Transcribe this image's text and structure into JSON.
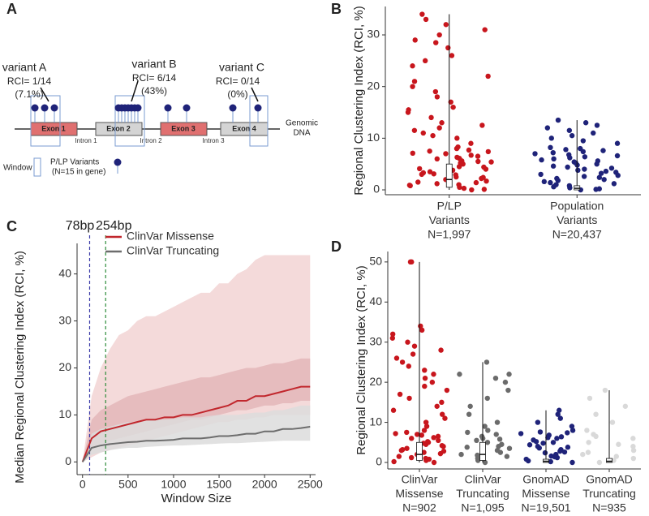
{
  "panels": [
    "A",
    "B",
    "C",
    "D"
  ],
  "diagram": {
    "variants": [
      {
        "title": "variant A",
        "rci": "RCI= 1/14",
        "pct": "(7.1%)"
      },
      {
        "title": "variant B",
        "rci": "RCI= 6/14",
        "pct": "(43%)"
      },
      {
        "title": "variant C",
        "rci": "RCI= 0/14",
        "pct": "(0%)"
      }
    ],
    "exons": [
      "Exon 1",
      "Exon 2",
      "Exon 3",
      "Exon 4"
    ],
    "introns": [
      "Intron 1",
      "Intron 2",
      "Intron 3"
    ],
    "dna": [
      "Genomic",
      "DNA"
    ],
    "legend": {
      "window": "Window",
      "variants": "P/LP Variants",
      "note": "(N=15 in gene)"
    }
  },
  "chart_data": [
    {
      "type": "strip",
      "ylabel": "Regional Clustering Index (RCI, %)",
      "ylim": [
        -0.94,
        35.5
      ],
      "yticks": [
        0,
        10,
        20,
        30
      ],
      "categories": [
        [
          "P/LP",
          "Variants",
          "N=1,997"
        ],
        [
          "Population",
          "Variants",
          "N=20,437"
        ]
      ],
      "groups": [
        {
          "color": "#c8161d",
          "values": [
            0,
            0.5,
            1,
            1.5,
            2,
            2.5,
            3,
            3.5,
            4,
            4.5,
            5,
            5.5,
            6,
            6.5,
            7,
            7.5,
            8,
            0.8,
            1.2,
            2.2,
            3.3,
            4.4,
            5.6,
            6.7,
            7.1,
            0.3,
            1.7,
            2.9,
            3.8,
            5.2,
            6.1,
            7.4,
            0.1,
            0.9,
            1.4,
            2.4,
            3.1,
            4.1,
            5.4,
            6.3,
            7.7,
            8.3,
            9,
            10,
            10.5,
            11,
            11.5,
            12,
            12.5,
            13,
            14,
            15,
            15.5,
            16,
            17,
            18,
            19,
            20,
            21,
            22,
            24,
            25,
            26,
            27.5,
            28.5,
            29,
            30,
            31,
            32,
            33,
            34
          ],
          "box": [
            0.5,
            2,
            5
          ],
          "whisker": [
            0,
            34
          ]
        },
        {
          "color": "#1f2379",
          "values": [
            0,
            0.4,
            0.8,
            1.2,
            1.6,
            2,
            2.4,
            2.8,
            3.2,
            3.6,
            4,
            4.4,
            4.8,
            5.2,
            5.6,
            6,
            6.4,
            6.8,
            7.2,
            7.6,
            8,
            0.2,
            1,
            1.8,
            2.6,
            3.4,
            4.2,
            5,
            5.8,
            6.6,
            7.4,
            8.2,
            0.1,
            0.6,
            1.4,
            2.2,
            3,
            3.8,
            4.6,
            5.4,
            6.2,
            7,
            7.8,
            9,
            9.5,
            10,
            10.5,
            11,
            11.5,
            12,
            12.5,
            13,
            13.5
          ],
          "box": [
            0,
            0.3,
            0.8
          ],
          "whisker": [
            0,
            13.5
          ]
        }
      ]
    },
    {
      "type": "line",
      "xlabel": "Window Size",
      "ylabel": "Median Regional Clustering Index (RCI, %)",
      "xlim": [
        -60,
        2560
      ],
      "xticks": [
        0,
        500,
        1000,
        1500,
        2000,
        2500
      ],
      "ylim": [
        -2.7,
        46.5
      ],
      "yticks": [
        0,
        10,
        20,
        30,
        40
      ],
      "x": [
        0,
        100,
        200,
        300,
        400,
        500,
        600,
        700,
        800,
        900,
        1000,
        1100,
        1200,
        1300,
        1400,
        1500,
        1600,
        1700,
        1800,
        1900,
        2000,
        2100,
        2200,
        2300,
        2400,
        2500
      ],
      "vlines": [
        {
          "x": 78,
          "label": "78bp",
          "color": "#3b3ba8"
        },
        {
          "x": 254,
          "label": "254bp",
          "color": "#2e8b3a"
        }
      ],
      "series": [
        {
          "name": "ClinVar Missense",
          "color": "#c1272d",
          "values": [
            0,
            5,
            6.5,
            7,
            7.5,
            8,
            8.5,
            9,
            9,
            9.5,
            9.5,
            10,
            10,
            10.5,
            11,
            11.5,
            12,
            13,
            13,
            14,
            14,
            14.5,
            15,
            15.5,
            16,
            16
          ],
          "bands": [
            {
              "color": "#f2d3d4",
              "lower": [
                0,
                1,
                2,
                2.5,
                3,
                3.5,
                4,
                4.5,
                5,
                5.5,
                6,
                6.5,
                7,
                7.5,
                8,
                8.5,
                8.5,
                9,
                9,
                9.5,
                9.5,
                10,
                10,
                10,
                10,
                10
              ],
              "upper": [
                0,
                14,
                20,
                24,
                27,
                28,
                30,
                31,
                31,
                32,
                33,
                34,
                35,
                36,
                36,
                38,
                38,
                40,
                41,
                43,
                44,
                44,
                44,
                44,
                44,
                44
              ]
            },
            {
              "color": "#e3b6b8",
              "lower": [
                0,
                3,
                4,
                4.5,
                5,
                5.5,
                6,
                6.5,
                7,
                7.5,
                8,
                8.5,
                9,
                9,
                9.5,
                10,
                10.5,
                11,
                11,
                11.5,
                12,
                12,
                12.5,
                12.5,
                13,
                13
              ],
              "upper": [
                0,
                9,
                11,
                12,
                13,
                14,
                14.5,
                15,
                15.5,
                16,
                16.5,
                17,
                17.5,
                18,
                18,
                18.5,
                19,
                19.5,
                20,
                20,
                20.5,
                21,
                21,
                21.5,
                22,
                22
              ]
            }
          ]
        },
        {
          "name": "ClinVar Truncating",
          "color": "#6d6d6d",
          "values": [
            0,
            3,
            3.5,
            3.8,
            4,
            4.2,
            4.3,
            4.5,
            4.5,
            4.6,
            4.7,
            5,
            5,
            5,
            5.2,
            5.5,
            5.5,
            5.7,
            6,
            6,
            6.5,
            6.5,
            7,
            7,
            7.2,
            7.5
          ],
          "bands": [
            {
              "color": "#dcdcdc",
              "lower": [
                0,
                1.5,
                2,
                2.5,
                2.8,
                3,
                3,
                3.2,
                3.3,
                3.4,
                3.5,
                3.5,
                3.6,
                3.7,
                3.8,
                3.9,
                4,
                4,
                4.1,
                4.2,
                4.3,
                4.4,
                4.5,
                4.5,
                4.5,
                4.5
              ],
              "upper": [
                0,
                6,
                7,
                7.5,
                8,
                8.5,
                8.5,
                8.8,
                9,
                9,
                9.2,
                9.5,
                9.5,
                9.5,
                9.8,
                10,
                10,
                10,
                10.3,
                10.5,
                10.5,
                11,
                11,
                11.5,
                12,
                12
              ]
            }
          ]
        }
      ]
    },
    {
      "type": "strip",
      "ylabel": "Regional Clustering Index (RCI, %)",
      "ylim": [
        -1.62,
        52.6
      ],
      "yticks": [
        0,
        10,
        20,
        30,
        40,
        50
      ],
      "categories": [
        [
          "ClinVar",
          "Missense",
          "N=902"
        ],
        [
          "ClinVar",
          "Truncating",
          "N=1,095"
        ],
        [
          "GnomAD",
          "Missense",
          "N=19,501"
        ],
        [
          "GnomAD",
          "Truncating",
          "N=935"
        ]
      ],
      "groups": [
        {
          "color": "#c8161d",
          "values": [
            0,
            0.5,
            1,
            1.5,
            2,
            2.5,
            3,
            3.5,
            4,
            4.5,
            5,
            5.5,
            6,
            6.5,
            7,
            7.5,
            8,
            0.2,
            1.2,
            2.2,
            3.2,
            4.2,
            5.2,
            6.2,
            7.2,
            0.8,
            2.8,
            4.8,
            6.8,
            9,
            10,
            11,
            12,
            13,
            14,
            15,
            16,
            17,
            18,
            19,
            20,
            21,
            22,
            23,
            24,
            25,
            26,
            27,
            28,
            29,
            30,
            31,
            32,
            33,
            34,
            50,
            50
          ],
          "box": [
            0.5,
            2,
            5
          ],
          "whisker": [
            0,
            50
          ]
        },
        {
          "color": "#6b6b6b",
          "values": [
            0,
            0.5,
            1,
            1.5,
            2,
            2.5,
            3,
            3.5,
            4,
            4.5,
            5,
            5.5,
            6,
            6.5,
            7,
            7.5,
            8,
            1.8,
            3.8,
            5.8,
            9,
            10,
            12,
            14,
            16,
            18,
            20,
            21,
            22,
            22,
            25
          ],
          "box": [
            0.5,
            2,
            5
          ],
          "whisker": [
            0,
            25
          ]
        },
        {
          "color": "#1f2379",
          "values": [
            0,
            0.4,
            0.8,
            1.2,
            1.6,
            2,
            2.4,
            2.8,
            3.2,
            3.6,
            4,
            4.4,
            4.8,
            5.2,
            5.6,
            6,
            6.4,
            6.8,
            7.2,
            7.6,
            8,
            0.2,
            1.4,
            2.6,
            3.8,
            5,
            6.2,
            7.4,
            9,
            10,
            11,
            12,
            13
          ],
          "box": [
            0,
            0.3,
            0.8
          ],
          "whisker": [
            0,
            13
          ]
        },
        {
          "color": "#d9d9d9",
          "values": [
            0,
            0.5,
            1,
            1.5,
            2,
            3,
            4,
            5,
            6,
            7,
            8,
            2.5,
            4.5,
            6.5,
            10,
            12,
            14,
            16,
            18
          ],
          "box": [
            0,
            0.3,
            1
          ],
          "whisker": [
            0,
            18
          ]
        }
      ]
    }
  ]
}
